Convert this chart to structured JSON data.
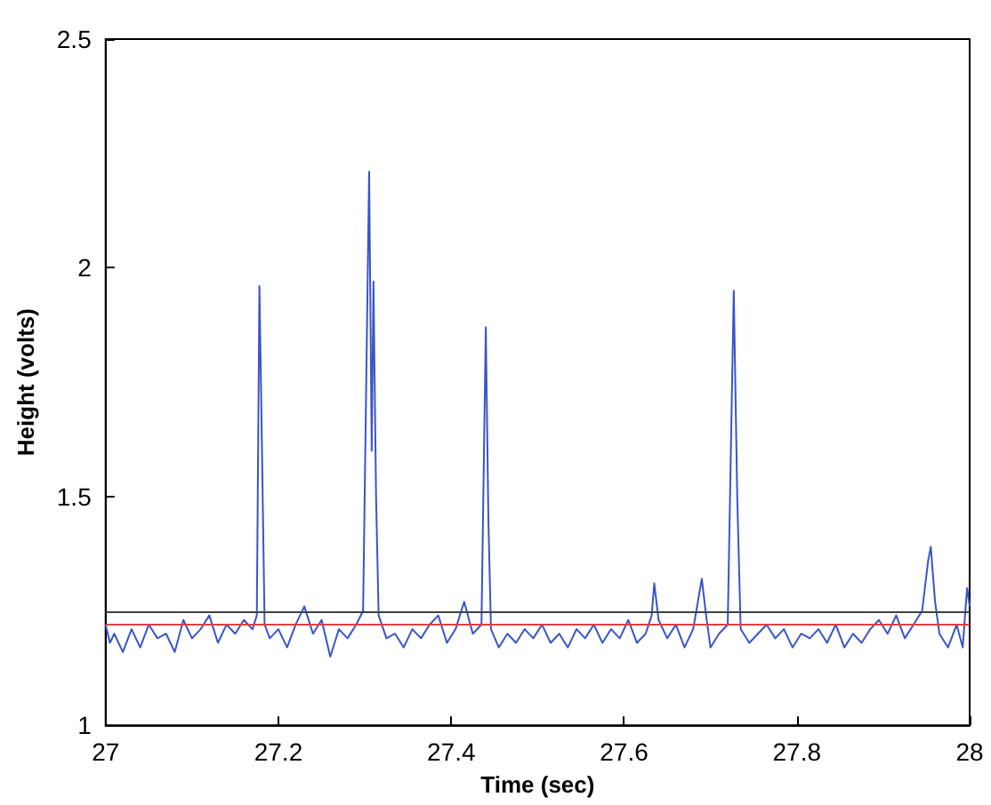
{
  "chart_data": {
    "type": "line",
    "xlabel": "Time (sec)",
    "ylabel": "Height (volts)",
    "xlim": [
      27,
      28
    ],
    "xticks": [
      27,
      27.2,
      27.4,
      27.6,
      27.8,
      28
    ],
    "ylim": [
      1,
      2.5
    ],
    "yticks": [
      1,
      1.5,
      2,
      2.5
    ],
    "grid": false,
    "marker": "none",
    "line_style": "solid",
    "ref_lines": [
      {
        "axis": "y",
        "value": 1.25,
        "color": "#404040"
      },
      {
        "axis": "y",
        "value": 1.22,
        "color": "#e04040"
      }
    ],
    "series": [
      {
        "color": "#3a55c8",
        "x": [
          27.0,
          27.005,
          27.01,
          27.02,
          27.03,
          27.04,
          27.05,
          27.06,
          27.07,
          27.08,
          27.09,
          27.1,
          27.11,
          27.12,
          27.13,
          27.14,
          27.15,
          27.16,
          27.17,
          27.175,
          27.178,
          27.181,
          27.184,
          27.19,
          27.2,
          27.21,
          27.22,
          27.23,
          27.24,
          27.25,
          27.26,
          27.27,
          27.28,
          27.29,
          27.298,
          27.302,
          27.305,
          27.308,
          27.31,
          27.313,
          27.316,
          27.325,
          27.335,
          27.345,
          27.355,
          27.365,
          27.375,
          27.385,
          27.395,
          27.405,
          27.415,
          27.425,
          27.435,
          27.44,
          27.443,
          27.446,
          27.455,
          27.465,
          27.475,
          27.485,
          27.495,
          27.505,
          27.515,
          27.525,
          27.535,
          27.545,
          27.555,
          27.565,
          27.575,
          27.585,
          27.595,
          27.605,
          27.615,
          27.625,
          27.632,
          27.635,
          27.64,
          27.65,
          27.66,
          27.67,
          27.68,
          27.69,
          27.695,
          27.7,
          27.71,
          27.72,
          27.727,
          27.731,
          27.735,
          27.745,
          27.755,
          27.765,
          27.775,
          27.785,
          27.795,
          27.805,
          27.815,
          27.825,
          27.835,
          27.845,
          27.855,
          27.865,
          27.875,
          27.885,
          27.895,
          27.905,
          27.915,
          27.925,
          27.935,
          27.945,
          27.952,
          27.955,
          27.96,
          27.965,
          27.975,
          27.985,
          27.992,
          27.997,
          28.0
        ],
        "values": [
          1.22,
          1.18,
          1.2,
          1.16,
          1.21,
          1.17,
          1.22,
          1.19,
          1.2,
          1.16,
          1.23,
          1.19,
          1.21,
          1.24,
          1.18,
          1.22,
          1.2,
          1.23,
          1.21,
          1.24,
          1.96,
          1.6,
          1.22,
          1.19,
          1.21,
          1.17,
          1.22,
          1.26,
          1.2,
          1.23,
          1.15,
          1.21,
          1.19,
          1.22,
          1.25,
          1.8,
          2.21,
          1.6,
          1.97,
          1.5,
          1.24,
          1.19,
          1.2,
          1.17,
          1.21,
          1.19,
          1.22,
          1.24,
          1.18,
          1.21,
          1.27,
          1.2,
          1.22,
          1.87,
          1.45,
          1.21,
          1.17,
          1.2,
          1.18,
          1.21,
          1.19,
          1.22,
          1.18,
          1.2,
          1.17,
          1.21,
          1.19,
          1.22,
          1.18,
          1.21,
          1.19,
          1.23,
          1.18,
          1.2,
          1.24,
          1.31,
          1.23,
          1.19,
          1.22,
          1.17,
          1.21,
          1.32,
          1.24,
          1.17,
          1.2,
          1.22,
          1.95,
          1.5,
          1.21,
          1.18,
          1.2,
          1.22,
          1.19,
          1.21,
          1.17,
          1.2,
          1.19,
          1.21,
          1.18,
          1.22,
          1.17,
          1.2,
          1.18,
          1.21,
          1.23,
          1.2,
          1.24,
          1.19,
          1.22,
          1.25,
          1.36,
          1.39,
          1.27,
          1.2,
          1.17,
          1.22,
          1.17,
          1.3,
          1.26
        ]
      }
    ]
  }
}
